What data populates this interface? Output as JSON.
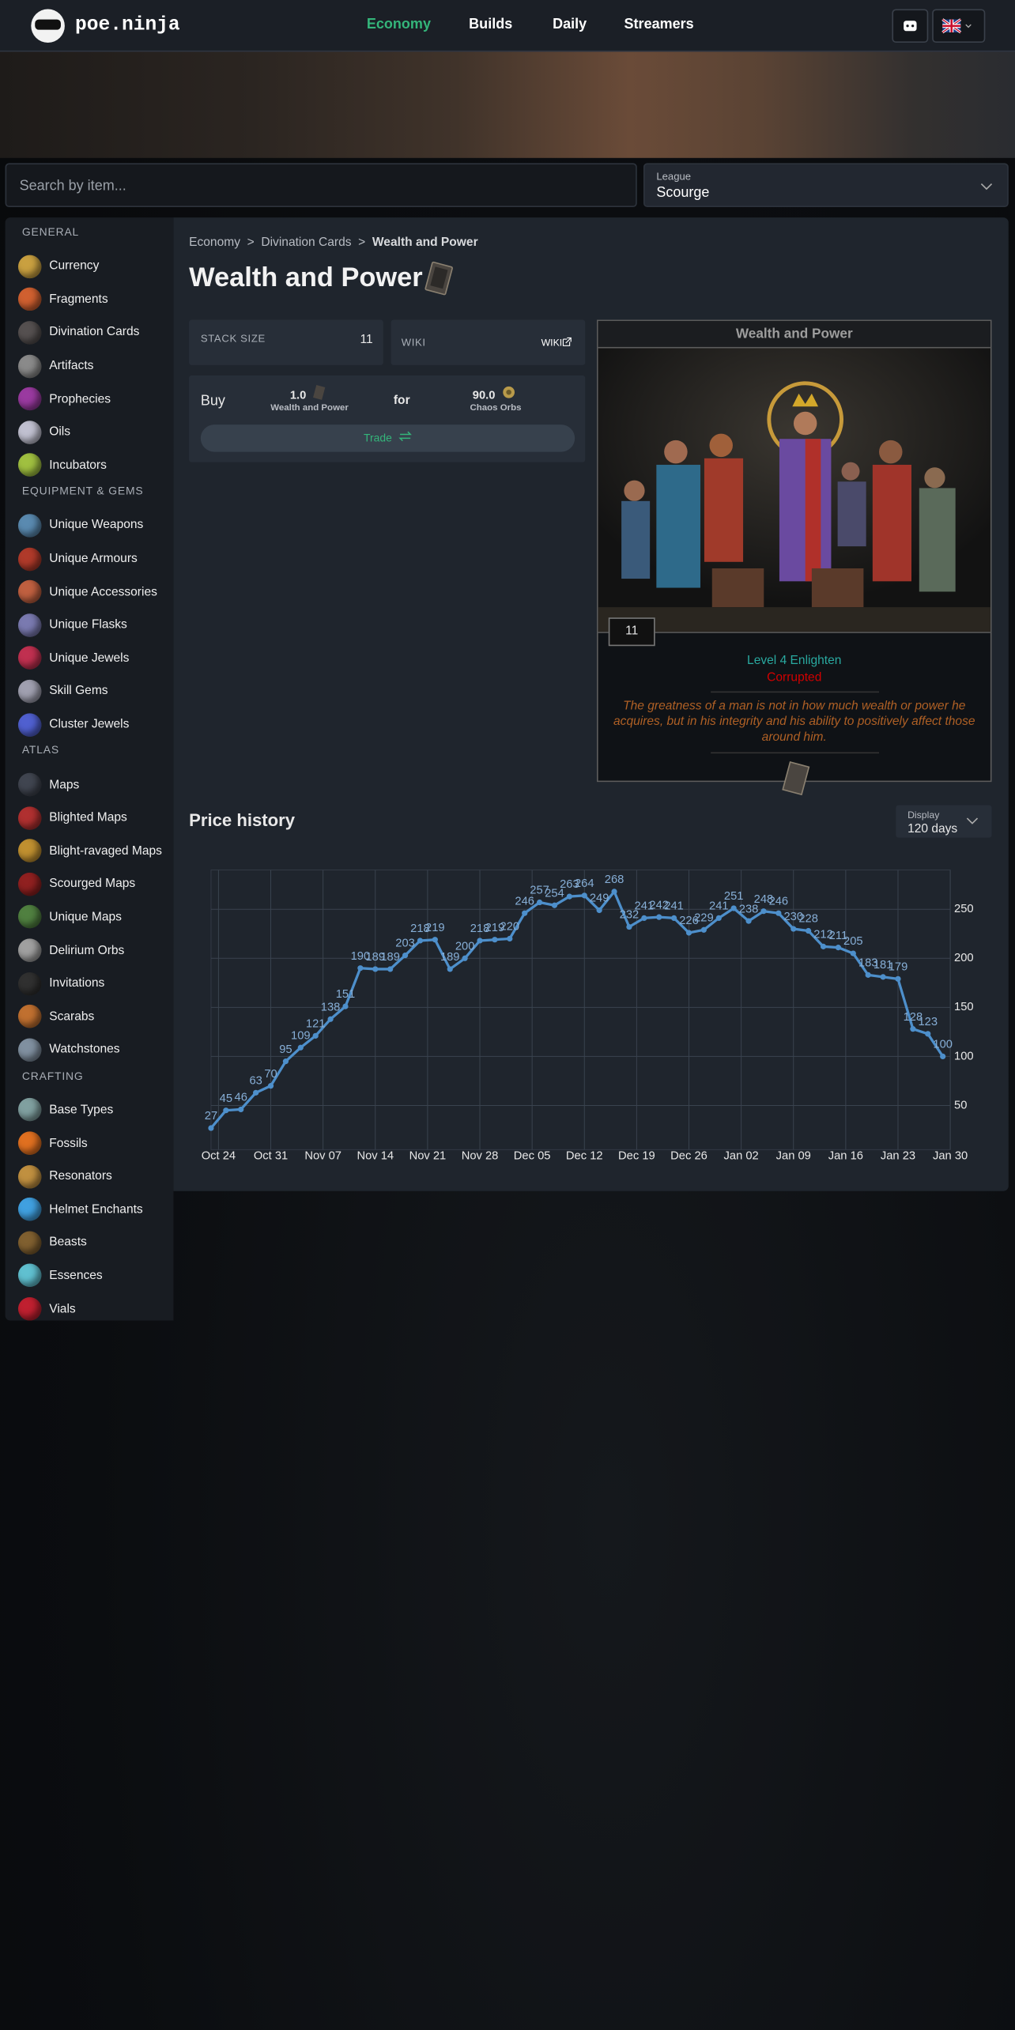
{
  "header": {
    "logo": "poe.ninja",
    "nav": [
      "Economy",
      "Builds",
      "Daily",
      "Streamers"
    ]
  },
  "search": {
    "placeholder": "Search by item...",
    "league_label": "League",
    "league": "Scourge"
  },
  "sidebar": [
    {
      "heading": "GENERAL",
      "items": [
        "Currency",
        "Fragments",
        "Divination Cards",
        "Artifacts",
        "Prophecies",
        "Oils",
        "Incubators"
      ]
    },
    {
      "heading": "EQUIPMENT & GEMS",
      "items": [
        "Unique Weapons",
        "Unique Armours",
        "Unique Accessories",
        "Unique Flasks",
        "Unique Jewels",
        "Skill Gems",
        "Cluster Jewels"
      ]
    },
    {
      "heading": "ATLAS",
      "items": [
        "Maps",
        "Blighted Maps",
        "Blight-ravaged Maps",
        "Scourged Maps",
        "Unique Maps",
        "Delirium Orbs",
        "Invitations",
        "Scarabs",
        "Watchstones"
      ]
    },
    {
      "heading": "CRAFTING",
      "items": [
        "Base Types",
        "Fossils",
        "Resonators",
        "Helmet Enchants",
        "Beasts",
        "Essences",
        "Vials"
      ]
    }
  ],
  "breadcrumb": [
    "Economy",
    "Divination Cards",
    "Wealth and Power"
  ],
  "title": "Wealth and Power",
  "stack": {
    "label": "STACK SIZE",
    "value": "11"
  },
  "wiki": {
    "label": "WIKI",
    "link": "WIKI"
  },
  "buy": {
    "label": "Buy",
    "amount": "1.0",
    "item": "Wealth and Power",
    "for": "for",
    "price": "90.0",
    "currency": "Chaos Orbs",
    "trade": "Trade"
  },
  "card": {
    "name": "Wealth and Power",
    "stack": "11",
    "reward": "Level 4 Enlighten",
    "corrupted": "Corrupted",
    "flavour": "The greatness of a man is not in how much wealth or power he acquires, but in his integrity and his ability to positively affect those around him."
  },
  "price_history": {
    "title": "Price history",
    "display_label": "Display",
    "display": "120 days"
  },
  "chart_data": {
    "type": "line",
    "color": "#4d8fcb",
    "x": [
      -1,
      1,
      3,
      5,
      7,
      9,
      11,
      13,
      15,
      17,
      19,
      21,
      23,
      25,
      27,
      29,
      31,
      33,
      35,
      37,
      39,
      41,
      43,
      45,
      47,
      49,
      51,
      53,
      55,
      57,
      59,
      61,
      63,
      65,
      67,
      69,
      71,
      73,
      75,
      77,
      79,
      81,
      83,
      85,
      87,
      89,
      91,
      93,
      95,
      97
    ],
    "values": [
      27,
      45,
      46,
      63,
      70,
      95,
      109,
      121,
      138,
      151,
      190,
      189,
      189,
      203,
      218,
      219,
      189,
      200,
      218,
      219,
      220,
      246,
      257,
      254,
      263,
      264,
      249,
      268,
      232,
      241,
      242,
      241,
      226,
      229,
      241,
      251,
      238,
      248,
      246,
      230,
      228,
      212,
      211,
      205,
      183,
      181,
      179,
      128,
      123,
      100
    ],
    "xlim": [
      -1,
      98
    ],
    "ylim": [
      5,
      290
    ],
    "xticks": [
      {
        "value": 0,
        "label": "Oct 24"
      },
      {
        "value": 7,
        "label": "Oct 31"
      },
      {
        "value": 14,
        "label": "Nov 07"
      },
      {
        "value": 21,
        "label": "Nov 14"
      },
      {
        "value": 28,
        "label": "Nov 21"
      },
      {
        "value": 35,
        "label": "Nov 28"
      },
      {
        "value": 42,
        "label": "Dec 05"
      },
      {
        "value": 49,
        "label": "Dec 12"
      },
      {
        "value": 56,
        "label": "Dec 19"
      },
      {
        "value": 63,
        "label": "Dec 26"
      },
      {
        "value": 70,
        "label": "Jan 02"
      },
      {
        "value": 77,
        "label": "Jan 09"
      },
      {
        "value": 84,
        "label": "Jan 16"
      },
      {
        "value": 91,
        "label": "Jan 23"
      },
      {
        "value": 98,
        "label": "Jan 30"
      }
    ],
    "yticks": [
      50,
      100,
      150,
      200,
      250
    ],
    "grid": true
  }
}
